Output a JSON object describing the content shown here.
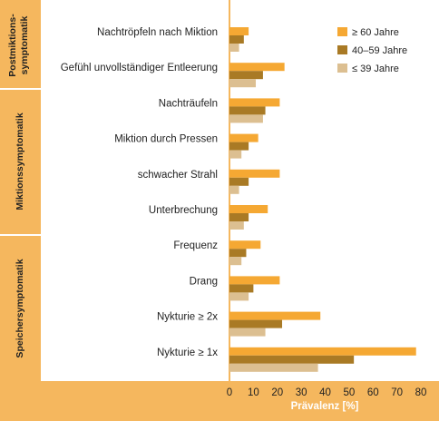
{
  "chart_data": {
    "type": "bar",
    "orientation": "horizontal",
    "xlabel": "Prävalenz [%]",
    "xlim": [
      0,
      80
    ],
    "xticks": [
      0,
      10,
      20,
      30,
      40,
      50,
      60,
      70,
      80
    ],
    "categories": [
      "Nachtröpfeln nach Miktion",
      "Gefühl unvollständiger Entleerung",
      "Nachträufeln",
      "Miktion durch Pressen",
      "schwacher Strahl",
      "Unterbrechung",
      "Frequenz",
      "Drang",
      "Nykturie ≥ 2x",
      "Nykturie ≥ 1x"
    ],
    "groups": [
      {
        "name": "Postmiktions-\nsymptomatik",
        "categories": [
          0,
          1
        ]
      },
      {
        "name": "Miktionssymptomatik",
        "categories": [
          2,
          3,
          4,
          5
        ]
      },
      {
        "name": "Speichersymptomatik",
        "categories": [
          6,
          7,
          8,
          9
        ]
      }
    ],
    "series": [
      {
        "name": "≥ 60 Jahre",
        "color": "#f5a833",
        "values": [
          8,
          23,
          21,
          12,
          21,
          16,
          13,
          21,
          38,
          78
        ]
      },
      {
        "name": "40–59 Jahre",
        "color": "#a97a25",
        "values": [
          6,
          14,
          15,
          8,
          8,
          8,
          7,
          10,
          22,
          52
        ]
      },
      {
        "name": "≤ 39 Jahre",
        "color": "#dcbf91",
        "values": [
          4,
          11,
          14,
          5,
          4,
          6,
          5,
          8,
          15,
          37
        ]
      }
    ],
    "legend_position": "top-right",
    "grid": false
  }
}
